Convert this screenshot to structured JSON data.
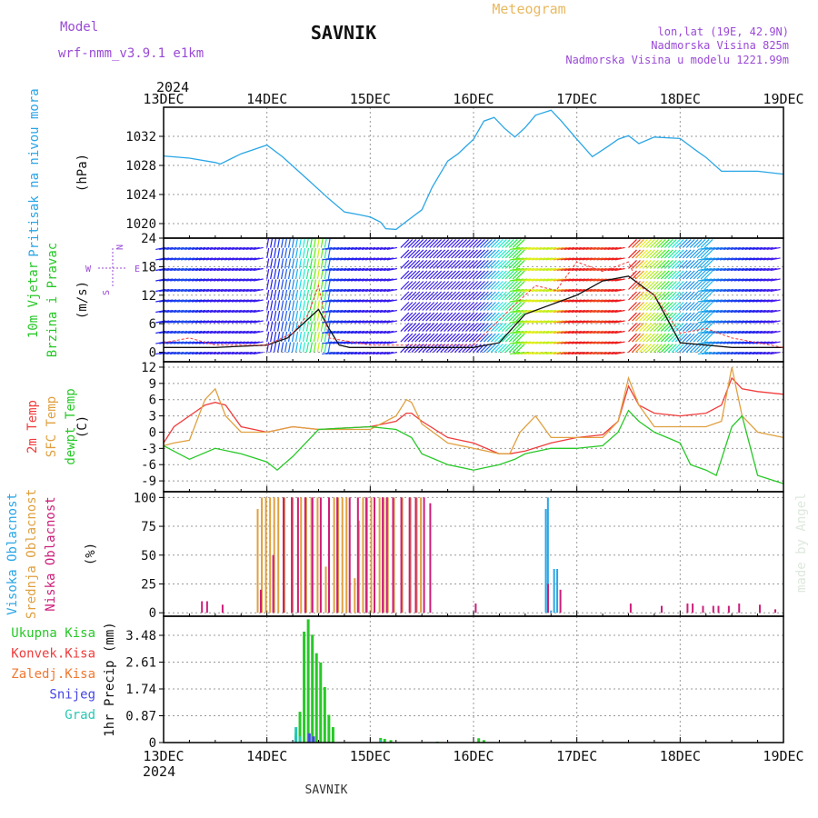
{
  "header": {
    "model_label": "Model",
    "model_name": "wrf-nmm_v3.9.1 e1km",
    "station": "SAVNIK",
    "meteogram": "Meteogram",
    "lonlat": "lon,lat (19E, 42.9N)",
    "elevation": "Nadmorska Visina 825m",
    "model_elevation": "Nadmorska Visina u modelu 1221.99m",
    "year_top": "2024",
    "year_bottom": "2024",
    "bottom_station": "SAVNIK",
    "signature": "made by Angel"
  },
  "colors": {
    "pressure": "#2aa6e6",
    "temp2m": "#f03c3c",
    "sfc_temp": "#e0a040",
    "dewpoint": "#28c828",
    "cloud_high": "#2aa6e6",
    "cloud_mid": "#e0a040",
    "cloud_low": "#cc1f7a",
    "precip_total": "#28c828",
    "precip_conv": "#f03c3c",
    "precip_frz": "#f07830",
    "precip_snow": "#4646e6",
    "precip_grad": "#28c8b4",
    "title_purple": "#9a4ad6",
    "meteogram_orange": "#e8b860"
  },
  "chart_data": {
    "x_ticks": [
      "13DEC",
      "14DEC",
      "15DEC",
      "16DEC",
      "17DEC",
      "18DEC",
      "19DEC"
    ],
    "x_range_days": [
      0,
      6
    ],
    "panels": [
      {
        "type": "line",
        "id": "pressure",
        "ylabel_lines": [
          "Pritisak na nivou mora"
        ],
        "unit": "(hPa)",
        "ylim": [
          1018,
          1036
        ],
        "ticks": [
          "1020",
          "1024",
          "1028",
          "1032"
        ],
        "tick_values": [
          1020,
          1024,
          1028,
          1032
        ],
        "series": [
          {
            "color": "pressure",
            "x": [
              0,
              0.25,
              0.5,
              0.55,
              0.75,
              1.0,
              1.15,
              1.4,
              1.6,
              1.75,
              1.9,
              2.0,
              2.1,
              2.15,
              2.25,
              2.35,
              2.5,
              2.6,
              2.75,
              2.85,
              3.0,
              3.1,
              3.2,
              3.3,
              3.4,
              3.5,
              3.6,
              3.75,
              3.85,
              4.0,
              4.15,
              4.3,
              4.4,
              4.5,
              4.6,
              4.75,
              5.0,
              5.15,
              5.25,
              5.4,
              5.5,
              5.75,
              6.0
            ],
            "y": [
              1029.3,
              1029,
              1028.4,
              1028.2,
              1029.6,
              1030.8,
              1029.2,
              1026,
              1023.4,
              1021.6,
              1021.2,
              1020.9,
              1020.2,
              1019.3,
              1019.2,
              1020.3,
              1021.9,
              1025,
              1028.6,
              1029.6,
              1031.6,
              1034.1,
              1034.6,
              1033.1,
              1031.9,
              1033.2,
              1034.9,
              1035.6,
              1034.1,
              1031.6,
              1029.2,
              1030.6,
              1031.6,
              1032.1,
              1031,
              1031.9,
              1031.7,
              1030.1,
              1029.1,
              1027.2,
              1027.2,
              1027.2,
              1026.8
            ]
          }
        ]
      },
      {
        "type": "scatter",
        "id": "wind",
        "ylabel_lines": [
          "10m Vjetar",
          "Brzina i Pravac"
        ],
        "unit": "(m/s)",
        "ylim": [
          -2,
          24
        ],
        "ticks": [
          "0",
          "6",
          "12",
          "18",
          "24"
        ],
        "tick_values": [
          0,
          6,
          12,
          18,
          24
        ],
        "compass": {
          "north": "N",
          "south": "S",
          "east": "E",
          "west": "W"
        },
        "speed_series": {
          "color": "#111111",
          "x": [
            0,
            0.5,
            1.0,
            1.2,
            1.35,
            1.5,
            1.6,
            1.7,
            1.8,
            2.0,
            2.5,
            3.0,
            3.25,
            3.5,
            4.0,
            4.25,
            4.5,
            4.75,
            5.0,
            5.5,
            6.0
          ],
          "y": [
            1,
            1,
            1.5,
            3,
            6,
            9,
            5,
            1.5,
            1,
            1,
            1,
            1,
            2,
            8,
            12,
            15,
            16,
            12,
            2,
            1,
            1
          ]
        },
        "gust_series": {
          "color": "#f03c3c",
          "x": [
            0,
            0.25,
            0.5,
            1.0,
            1.25,
            1.4,
            1.5,
            1.6,
            2.0,
            2.5,
            3.0,
            3.4,
            3.6,
            3.8,
            4.0,
            4.25,
            4.5,
            4.6,
            4.75,
            5.0,
            5.25,
            5.5,
            6.0
          ],
          "y": [
            2,
            3,
            1.5,
            1.5,
            4,
            8,
            14,
            3,
            1.5,
            1.5,
            1.5,
            10,
            14,
            13,
            19,
            17,
            19,
            14,
            12,
            4,
            5,
            3,
            1
          ]
        },
        "barbs_note": "direction arrows coloured by speed"
      },
      {
        "type": "line",
        "id": "temperature",
        "ylabel_lines": [
          "2m Temp",
          "SFC Temp",
          "dewpt Temp"
        ],
        "unit": "(C)",
        "ylim": [
          -11,
          13
        ],
        "ticks": [
          "-9",
          "-6",
          "-3",
          "0",
          "3",
          "6",
          "9",
          "12"
        ],
        "tick_values": [
          -9,
          -6,
          -3,
          0,
          3,
          6,
          9,
          12
        ],
        "series": [
          {
            "name": "2m Temp",
            "color": "temp2m",
            "x": [
              0,
              0.1,
              0.25,
              0.4,
              0.5,
              0.6,
              0.75,
              1.0,
              1.25,
              1.5,
              2.0,
              2.25,
              2.35,
              2.4,
              2.5,
              2.75,
              3.0,
              3.25,
              3.35,
              3.5,
              3.75,
              4.0,
              4.25,
              4.4,
              4.5,
              4.6,
              4.75,
              5.0,
              5.25,
              5.4,
              5.5,
              5.6,
              5.75,
              6.0
            ],
            "y": [
              -2,
              1,
              3,
              5,
              5.5,
              5,
              1,
              0,
              1,
              0.5,
              1,
              2,
              3.5,
              3.5,
              2,
              -1,
              -2,
              -4,
              -4,
              -3.5,
              -2,
              -1,
              -0.5,
              2,
              8.5,
              5,
              3.5,
              3,
              3.5,
              5,
              10,
              8,
              7.5,
              7
            ]
          },
          {
            "name": "SFC Temp",
            "color": "sfc_temp",
            "x": [
              0,
              0.1,
              0.25,
              0.4,
              0.5,
              0.6,
              0.75,
              1.0,
              1.25,
              1.5,
              2.0,
              2.25,
              2.35,
              2.4,
              2.5,
              2.75,
              3.0,
              3.25,
              3.35,
              3.45,
              3.6,
              3.75,
              4.0,
              4.25,
              4.4,
              4.5,
              4.6,
              4.75,
              5.0,
              5.25,
              5.4,
              5.5,
              5.6,
              5.75,
              6.0
            ],
            "y": [
              -2.5,
              -2,
              -1.5,
              6,
              8,
              3,
              0,
              0,
              1,
              0.5,
              0.5,
              3,
              6,
              5.5,
              1.5,
              -2,
              -3,
              -4,
              -4,
              0,
              3,
              -1,
              -1,
              -1,
              2,
              10,
              5,
              1,
              1,
              1,
              2,
              12,
              3,
              0,
              -1
            ]
          },
          {
            "name": "dewpt Temp",
            "color": "dewpoint",
            "x": [
              0,
              0.25,
              0.5,
              0.75,
              1.0,
              1.1,
              1.25,
              1.5,
              2.0,
              2.25,
              2.4,
              2.5,
              2.75,
              3.0,
              3.25,
              3.4,
              3.5,
              3.75,
              4.0,
              4.25,
              4.4,
              4.5,
              4.6,
              4.75,
              5.0,
              5.1,
              5.25,
              5.35,
              5.5,
              5.6,
              5.75,
              6.0
            ],
            "y": [
              -2.5,
              -5,
              -3,
              -4,
              -5.5,
              -7,
              -4.5,
              0.5,
              1,
              0.5,
              -1,
              -4,
              -6,
              -7,
              -6,
              -5,
              -4,
              -3,
              -3,
              -2.5,
              0,
              4,
              2,
              0,
              -2,
              -6,
              -7,
              -8,
              1,
              3,
              -8,
              -9.5
            ]
          }
        ]
      },
      {
        "type": "bar",
        "id": "clouds",
        "ylabel_lines": [
          "Visoka Oblacnost",
          "Srednja Oblacnost",
          "Niska Oblacnost"
        ],
        "unit": "(%)",
        "ylim": [
          -3,
          105
        ],
        "ticks": [
          "0",
          "25",
          "50",
          "75",
          "100"
        ],
        "tick_values": [
          0,
          25,
          50,
          75,
          100
        ],
        "series": [
          {
            "name": "Visoka Oblacnost",
            "color": "cloud_high",
            "x": [
              3.7,
              3.72,
              3.75,
              3.78,
              3.81
            ],
            "y": [
              90,
              100,
              2,
              38,
              38
            ]
          },
          {
            "name": "Srednja Oblacnost",
            "color": "cloud_mid",
            "x": [
              0.9,
              0.94,
              0.98,
              1.02,
              1.06,
              1.1,
              1.16,
              1.24,
              1.32,
              1.37,
              1.42,
              1.48,
              1.56,
              1.64,
              1.68,
              1.72,
              1.76,
              1.84,
              1.88,
              1.92,
              1.96,
              2.0,
              2.08,
              2.12,
              2.16,
              2.22,
              2.3,
              2.38,
              2.44,
              2.48
            ],
            "y": [
              90,
              100,
              100,
              100,
              100,
              100,
              100,
              100,
              100,
              100,
              100,
              100,
              40,
              100,
              100,
              100,
              100,
              30,
              80,
              100,
              100,
              100,
              100,
              100,
              100,
              100,
              100,
              100,
              100,
              100
            ]
          },
          {
            "name": "Niska Oblacnost",
            "color": "cloud_low",
            "x": [
              0.35,
              0.4,
              0.55,
              0.92,
              1.04,
              1.14,
              1.22,
              1.28,
              1.35,
              1.42,
              1.5,
              1.58,
              1.66,
              1.78,
              1.86,
              1.94,
              2.02,
              2.1,
              2.14,
              2.2,
              2.28,
              2.36,
              2.42,
              2.5,
              2.56,
              3.0,
              3.7,
              3.82,
              4.5,
              4.8,
              5.05,
              5.1,
              5.2,
              5.3,
              5.35,
              5.45,
              5.55,
              5.75,
              5.9
            ],
            "y": [
              10,
              10,
              7,
              20,
              50,
              100,
              100,
              100,
              100,
              100,
              100,
              100,
              100,
              100,
              100,
              100,
              100,
              100,
              100,
              100,
              100,
              100,
              100,
              100,
              95,
              8,
              25,
              20,
              8,
              6,
              8,
              8,
              6,
              6,
              6,
              6,
              8,
              7,
              3
            ]
          }
        ]
      },
      {
        "type": "bar",
        "id": "precip",
        "ylabel_lines": [
          "1hr Precip (mm)"
        ],
        "legend": [
          "Ukupna Kisa",
          "Konvek.Kisa",
          "Zaledj.Kisa",
          "Snijeg",
          "Grad"
        ],
        "legend_colors": [
          "precip_total",
          "precip_conv",
          "precip_frz",
          "precip_snow",
          "precip_grad"
        ],
        "ylim": [
          0,
          4.1
        ],
        "ticks": [
          "0",
          "0.87",
          "1.74",
          "2.61",
          "3.48"
        ],
        "tick_values": [
          0,
          0.87,
          1.74,
          2.61,
          3.48
        ],
        "series": [
          {
            "name": "Ukupna Kisa",
            "color": "precip_total",
            "x": [
              1.28,
              1.32,
              1.36,
              1.4,
              1.44,
              1.48,
              1.52,
              1.56,
              1.6,
              1.64,
              2.1,
              2.14,
              2.2,
              2.65,
              3.05,
              3.1
            ],
            "y": [
              0.3,
              1.0,
              3.6,
              4.0,
              3.5,
              2.9,
              2.6,
              1.8,
              0.9,
              0.5,
              0.15,
              0.12,
              0.08,
              0.03,
              0.14,
              0.08
            ]
          },
          {
            "name": "Snijeg",
            "color": "precip_snow",
            "x": [
              1.27,
              1.4,
              1.44
            ],
            "y": [
              0.2,
              0.3,
              0.2
            ]
          },
          {
            "name": "Grad",
            "color": "precip_grad",
            "x": [
              1.26,
              1.3,
              2.08
            ],
            "y": [
              0.5,
              0.2,
              0.08
            ]
          }
        ]
      }
    ]
  }
}
